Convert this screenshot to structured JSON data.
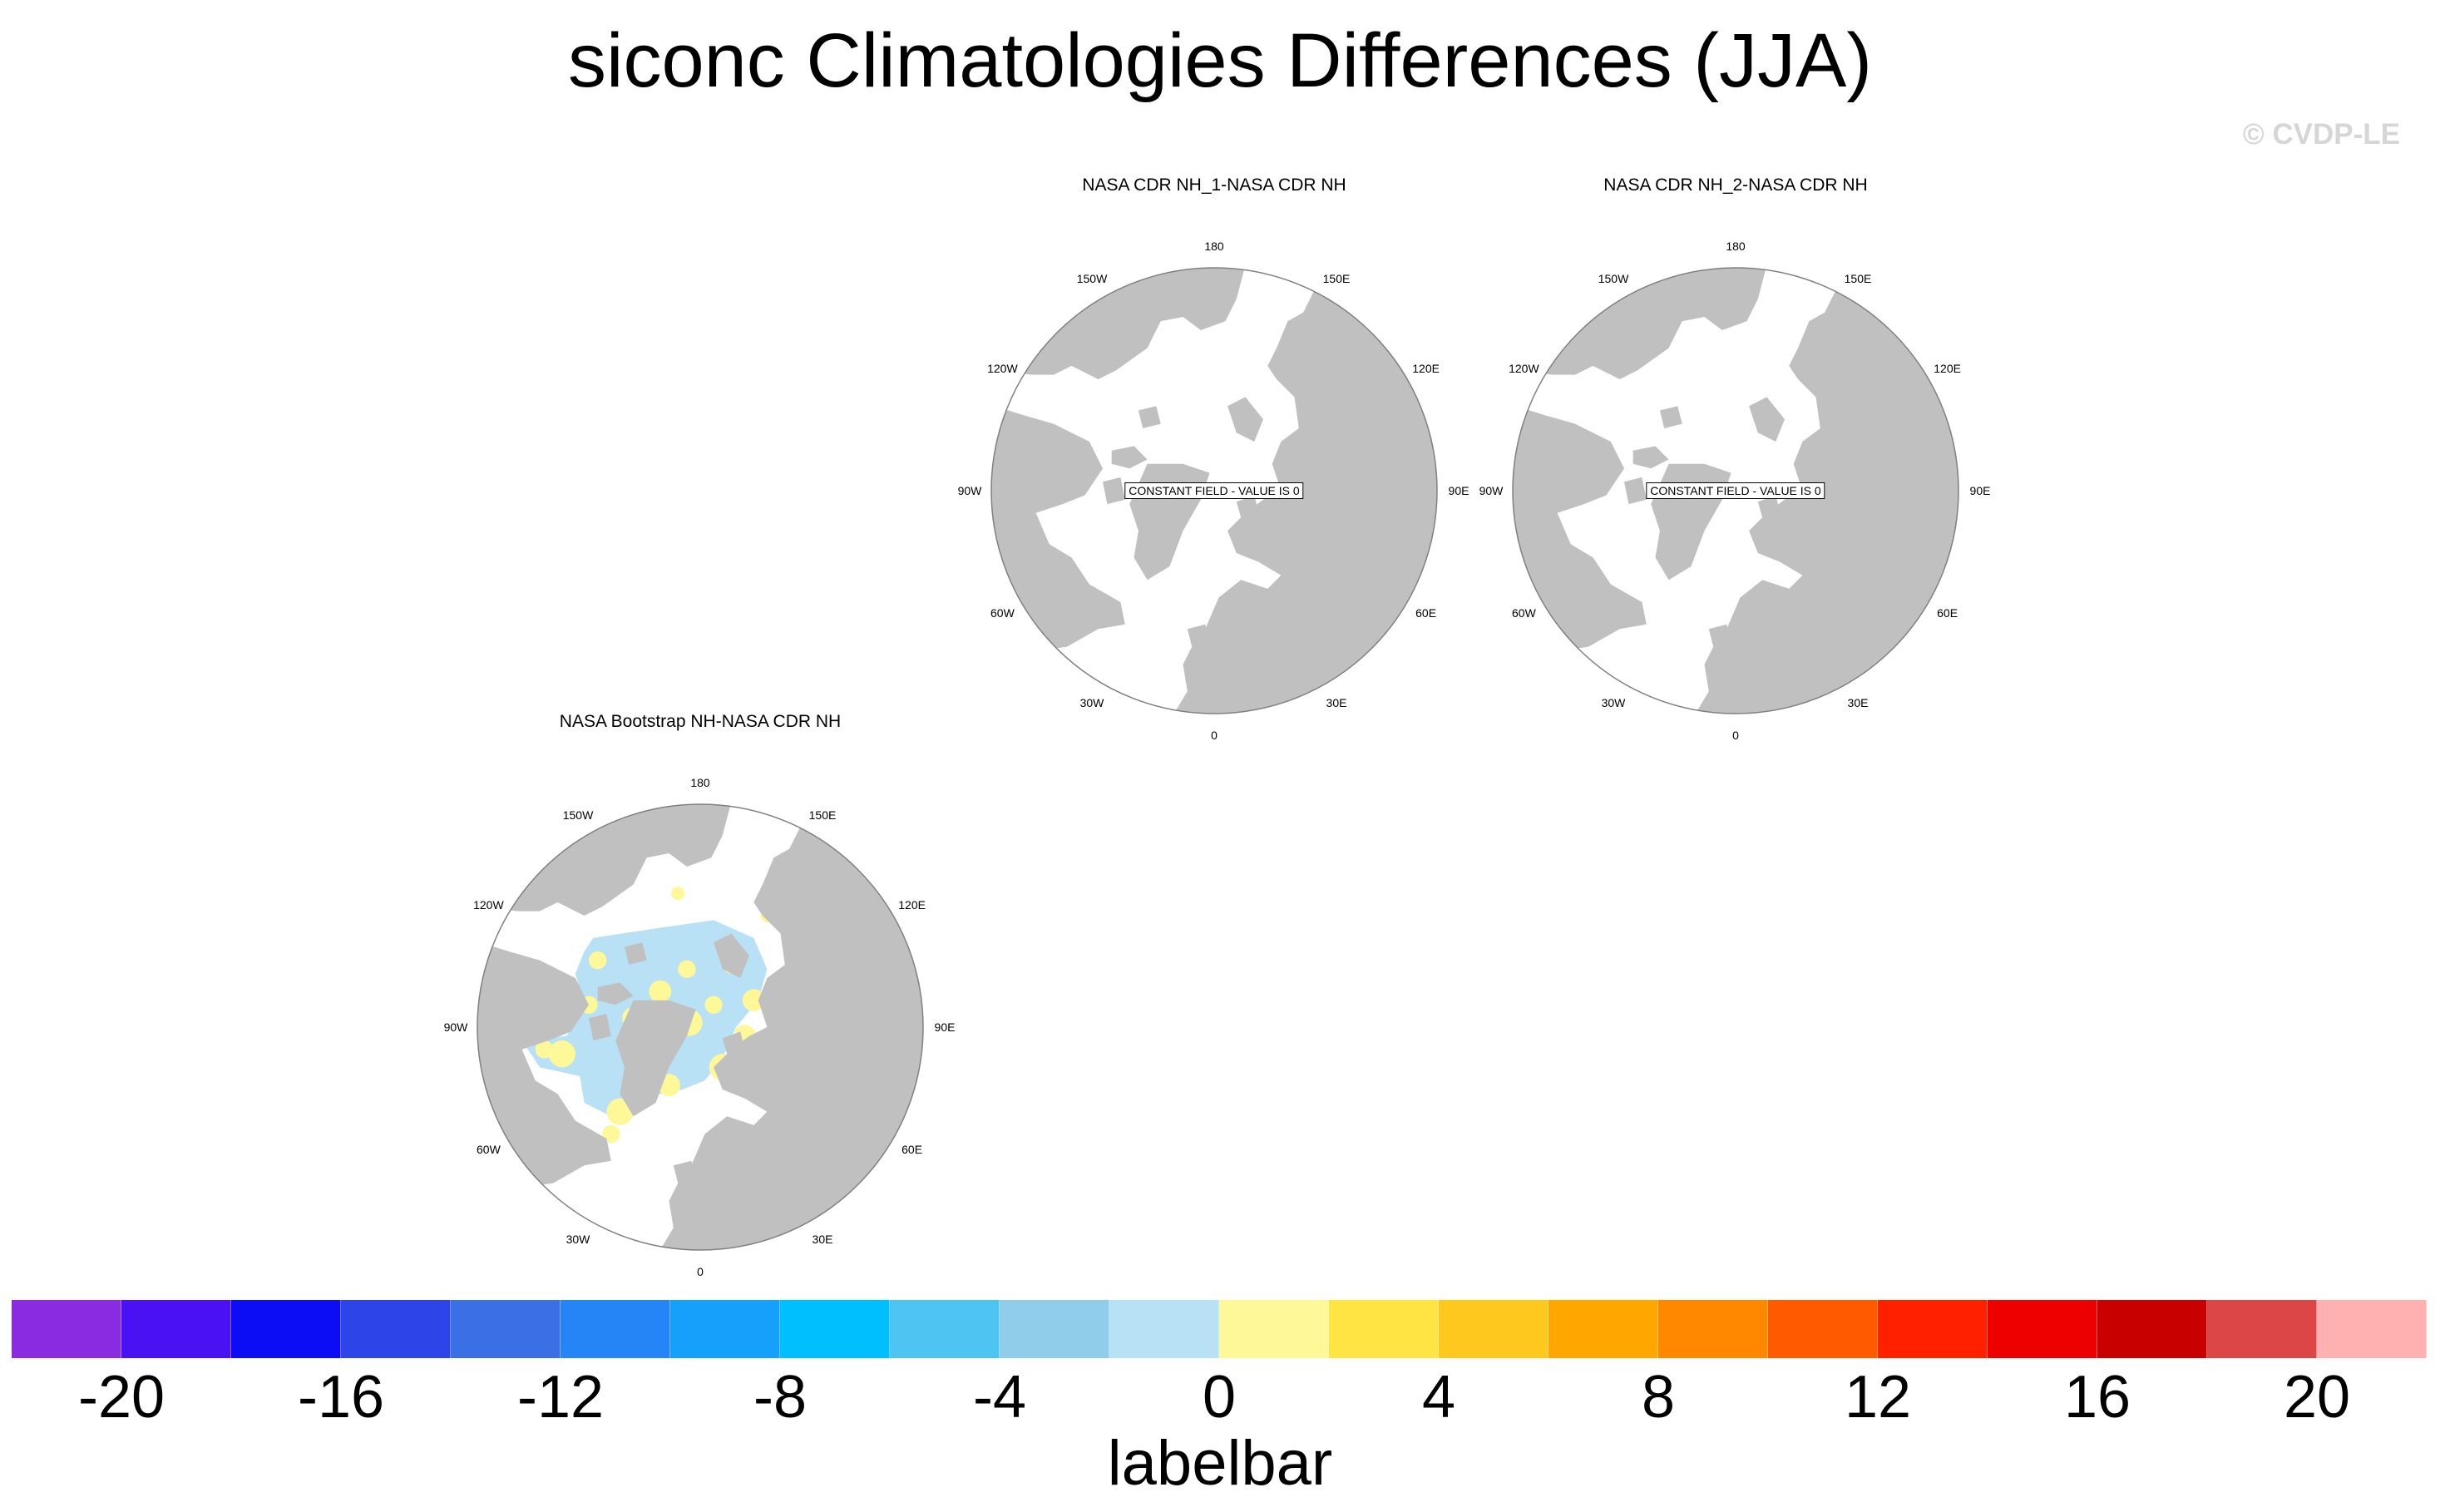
{
  "title": "siconc Climatologies Differences (JJA)",
  "copyright": "© CVDP-LE",
  "lon_labels": [
    "180",
    "150E",
    "120E",
    "90E",
    "60E",
    "30E",
    "0",
    "30W",
    "60W",
    "90W",
    "120W",
    "150W"
  ],
  "panels": [
    {
      "title": "NASA CDR NH_1-NASA CDR NH",
      "constant_label": "CONSTANT FIELD - VALUE IS 0"
    },
    {
      "title": "NASA CDR NH_2-NASA CDR NH",
      "constant_label": "CONSTANT FIELD - VALUE IS 0"
    },
    {
      "title": "NASA Bootstrap NH-NASA CDR NH"
    }
  ],
  "labelbar": {
    "title": "labelbar",
    "tick_labels": [
      "-20",
      "-16",
      "-12",
      "-8",
      "-4",
      "0",
      "4",
      "8",
      "12",
      "16",
      "20"
    ],
    "tick_values": [
      -20,
      -16,
      -12,
      -8,
      -4,
      0,
      4,
      8,
      12,
      16,
      20
    ],
    "levels": [
      -20,
      -18,
      -16,
      -14,
      -12,
      -10,
      -8,
      -6,
      -4,
      -2,
      0,
      2,
      4,
      6,
      8,
      10,
      12,
      14,
      16,
      18,
      20
    ],
    "colors": [
      "#8a2be2",
      "#4a12f2",
      "#0d0df5",
      "#2d44e8",
      "#3a6fe6",
      "#2585f7",
      "#14a0fb",
      "#00bfff",
      "#4dc4f2",
      "#90cdeb",
      "#b9e1f5",
      "#fff899",
      "#ffe444",
      "#ffc81e",
      "#ffa600",
      "#ff8800",
      "#ff5a00",
      "#ff2000",
      "#ee0000",
      "#c80000",
      "#dc4646",
      "#ffb0b0"
    ]
  },
  "colors": {
    "land": "#c0c0c0",
    "ocean": "#ffffff",
    "border": "#808080"
  }
}
